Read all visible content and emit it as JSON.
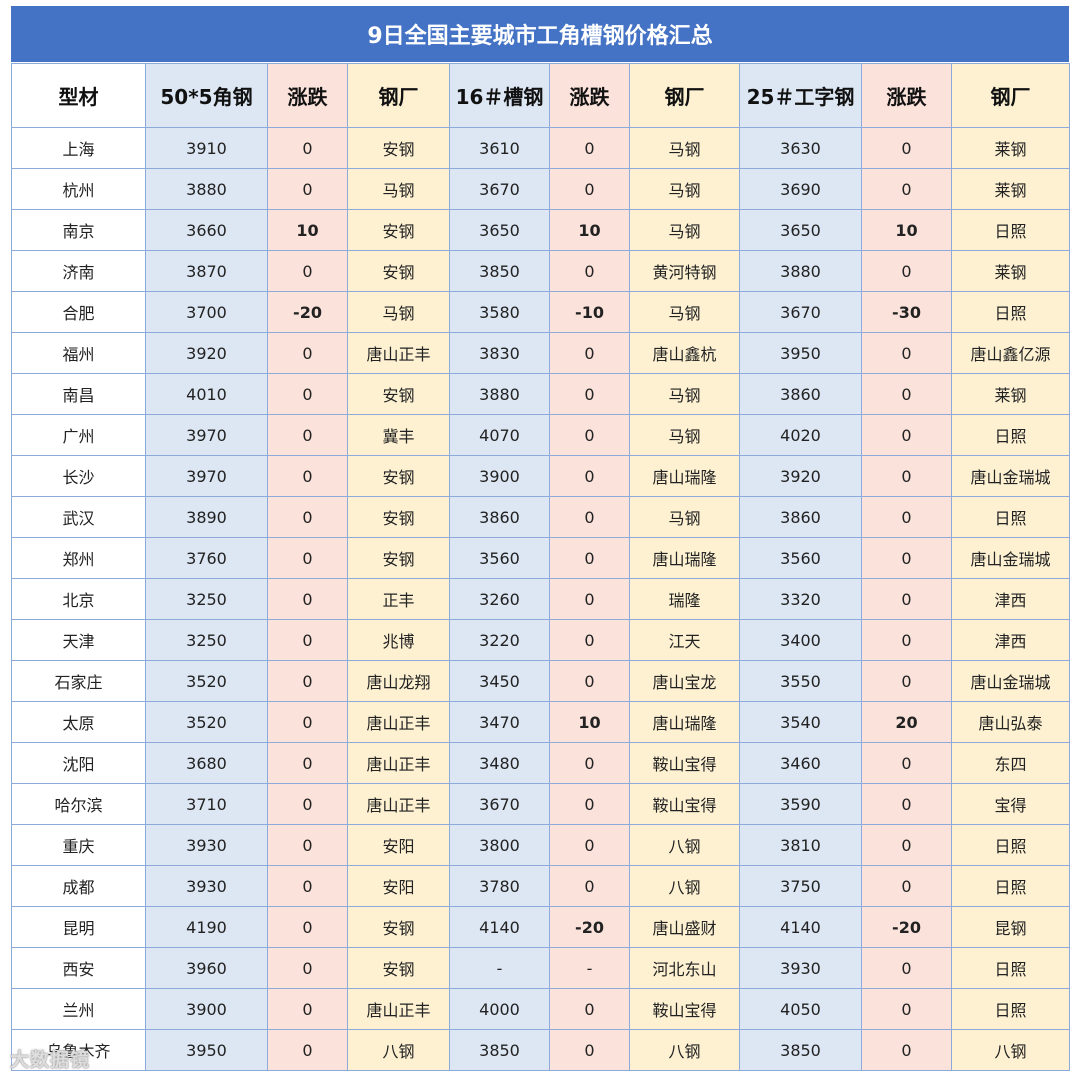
{
  "title": "9日全国主要城市工角槽钢价格汇总",
  "headers": [
    "型材",
    "50*5角钢",
    "涨跌",
    "钢厂",
    "16＃槽钢",
    "涨跌",
    "钢厂",
    "25＃工字钢",
    "涨跌",
    "钢厂"
  ],
  "rows": [
    [
      "上海",
      "3910",
      "0",
      "安钢",
      "3610",
      "0",
      "马钢",
      "3630",
      "0",
      "莱钢"
    ],
    [
      "杭州",
      "3880",
      "0",
      "马钢",
      "3670",
      "0",
      "马钢",
      "3690",
      "0",
      "莱钢"
    ],
    [
      "南京",
      "3660",
      "10",
      "安钢",
      "3650",
      "10",
      "马钢",
      "3650",
      "10",
      "日照"
    ],
    [
      "济南",
      "3870",
      "0",
      "安钢",
      "3850",
      "0",
      "黄河特钢",
      "3880",
      "0",
      "莱钢"
    ],
    [
      "合肥",
      "3700",
      "-20",
      "马钢",
      "3580",
      "-10",
      "马钢",
      "3670",
      "-30",
      "日照"
    ],
    [
      "福州",
      "3920",
      "0",
      "唐山正丰",
      "3830",
      "0",
      "唐山鑫杭",
      "3950",
      "0",
      "唐山鑫亿源"
    ],
    [
      "南昌",
      "4010",
      "0",
      "安钢",
      "3880",
      "0",
      "马钢",
      "3860",
      "0",
      "莱钢"
    ],
    [
      "广州",
      "3970",
      "0",
      "冀丰",
      "4070",
      "0",
      "马钢",
      "4020",
      "0",
      "日照"
    ],
    [
      "长沙",
      "3970",
      "0",
      "安钢",
      "3900",
      "0",
      "唐山瑞隆",
      "3920",
      "0",
      "唐山金瑞城"
    ],
    [
      "武汉",
      "3890",
      "0",
      "安钢",
      "3860",
      "0",
      "马钢",
      "3860",
      "0",
      "日照"
    ],
    [
      "郑州",
      "3760",
      "0",
      "安钢",
      "3560",
      "0",
      "唐山瑞隆",
      "3560",
      "0",
      "唐山金瑞城"
    ],
    [
      "北京",
      "3250",
      "0",
      "正丰",
      "3260",
      "0",
      "瑞隆",
      "3320",
      "0",
      "津西"
    ],
    [
      "天津",
      "3250",
      "0",
      "兆博",
      "3220",
      "0",
      "江天",
      "3400",
      "0",
      "津西"
    ],
    [
      "石家庄",
      "3520",
      "0",
      "唐山龙翔",
      "3450",
      "0",
      "唐山宝龙",
      "3550",
      "0",
      "唐山金瑞城"
    ],
    [
      "太原",
      "3520",
      "0",
      "唐山正丰",
      "3470",
      "10",
      "唐山瑞隆",
      "3540",
      "20",
      "唐山弘泰"
    ],
    [
      "沈阳",
      "3680",
      "0",
      "唐山正丰",
      "3480",
      "0",
      "鞍山宝得",
      "3460",
      "0",
      "东四"
    ],
    [
      "哈尔滨",
      "3710",
      "0",
      "唐山正丰",
      "3670",
      "0",
      "鞍山宝得",
      "3590",
      "0",
      "宝得"
    ],
    [
      "重庆",
      "3930",
      "0",
      "安阳",
      "3800",
      "0",
      "八钢",
      "3810",
      "0",
      "日照"
    ],
    [
      "成都",
      "3930",
      "0",
      "安阳",
      "3780",
      "0",
      "八钢",
      "3750",
      "0",
      "日照"
    ],
    [
      "昆明",
      "4190",
      "0",
      "安钢",
      "4140",
      "-20",
      "唐山盛财",
      "4140",
      "-20",
      "昆钢"
    ],
    [
      "西安",
      "3960",
      "0",
      "安钢",
      "-",
      "-",
      "河北东山",
      "3930",
      "0",
      "日照"
    ],
    [
      "兰州",
      "3900",
      "0",
      "唐山正丰",
      "4000",
      "0",
      "鞍山宝得",
      "4050",
      "0",
      "日照"
    ],
    [
      "乌鲁木齐",
      "3950",
      "0",
      "八钢",
      "3850",
      "0",
      "八钢",
      "3850",
      "0",
      "八钢"
    ]
  ],
  "watermark": "大数据镜",
  "colors": {
    "title_bg": "#4472c4",
    "price_bg": "#dde7f4",
    "change_bg": "#fbe3db",
    "mill_bg": "#fdf1d2",
    "rise": "#e02020",
    "fall": "#3fa23f"
  }
}
